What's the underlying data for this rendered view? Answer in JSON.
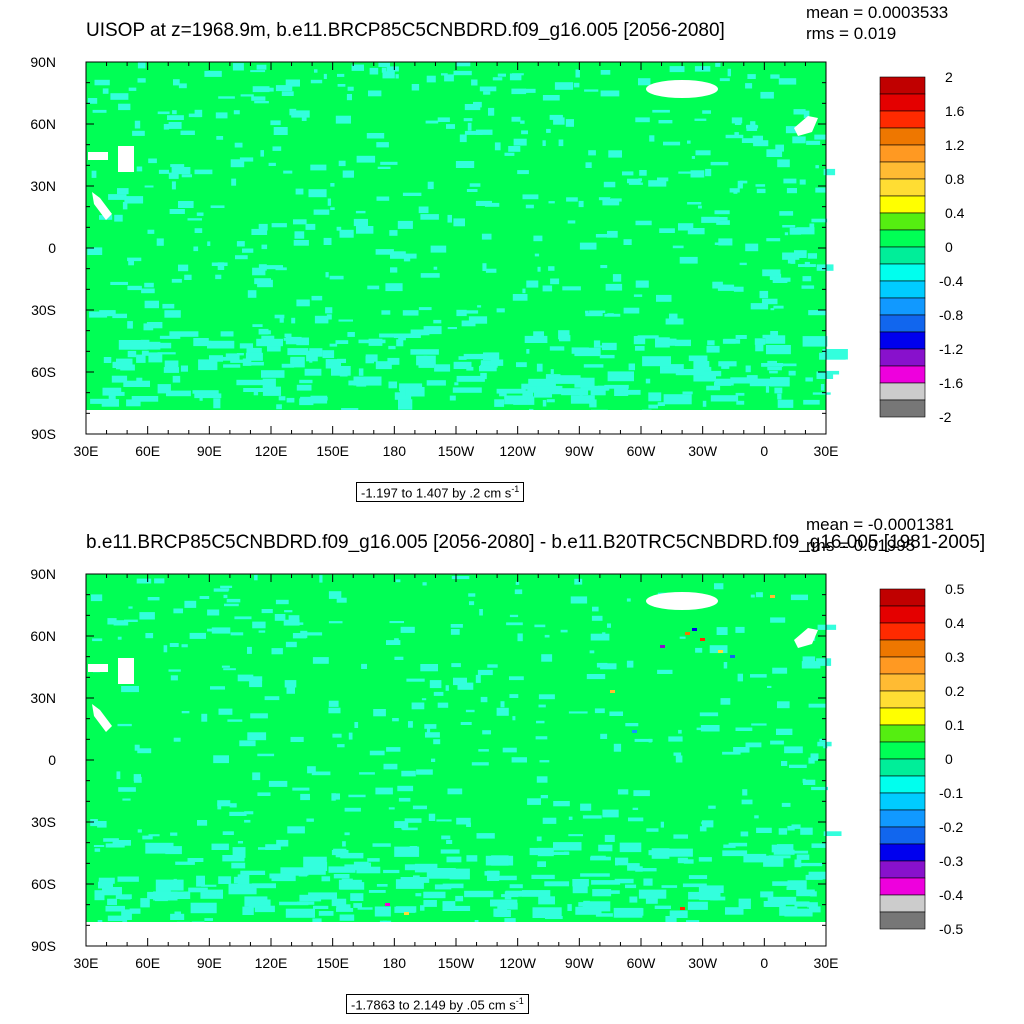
{
  "chart_data": [
    {
      "type": "heatmap",
      "title": "UISOP at z=1968.9m, b.e11.BRCP85C5CNBDRD.f09_g16.005 [2056-2080]",
      "mean_label": "mean = 0.0003533",
      "rms_label": "rms = 0.019",
      "x_ticks": [
        "30E",
        "60E",
        "90E",
        "120E",
        "150E",
        "180",
        "150W",
        "120W",
        "90W",
        "60W",
        "30W",
        "0",
        "30E"
      ],
      "y_ticks": [
        "90N",
        "60N",
        "30N",
        "0",
        "30S",
        "60S",
        "90S"
      ],
      "colorbar_labels": [
        "2",
        "1.6",
        "1.2",
        "0.8",
        "0.4",
        "0",
        "-0.4",
        "-0.8",
        "-1.2",
        "-1.6",
        "-2"
      ],
      "colorbar_range": [
        -2,
        2
      ],
      "range_text": "-1.197 to 1.407 by .2 cm s",
      "range_unit_exp": "-1",
      "dominant_color": "#00ff55",
      "secondary_color": "#33ffdd"
    },
    {
      "type": "heatmap",
      "title": "b.e11.BRCP85C5CNBDRD.f09_g16.005 [2056-2080] - b.e11.B20TRC5CNBDRD.f09_g16.005 [1981-2005]",
      "mean_label": "mean = -0.0001381",
      "rms_label": "rms = 0.01995",
      "x_ticks": [
        "30E",
        "60E",
        "90E",
        "120E",
        "150E",
        "180",
        "150W",
        "120W",
        "90W",
        "60W",
        "30W",
        "0",
        "30E"
      ],
      "y_ticks": [
        "90N",
        "60N",
        "30N",
        "0",
        "30S",
        "60S",
        "90S"
      ],
      "colorbar_labels": [
        "0.5",
        "0.4",
        "0.3",
        "0.2",
        "0.1",
        "0",
        "-0.1",
        "-0.2",
        "-0.3",
        "-0.4",
        "-0.5"
      ],
      "colorbar_range": [
        -0.5,
        0.5
      ],
      "range_text": "-1.7863 to 2.149 by .05 cm s",
      "range_unit_exp": "-1",
      "dominant_color": "#00ff55",
      "secondary_color": "#33ffdd"
    }
  ],
  "colorbar_colors": [
    "#c00000",
    "#e40000",
    "#ff2a00",
    "#ee7700",
    "#ff9922",
    "#ffbb33",
    "#ffdd33",
    "#ffff00",
    "#55ee11",
    "#00ff55",
    "#00ee99",
    "#00ffee",
    "#00ccff",
    "#1199ff",
    "#1166ee",
    "#0000ee",
    "#8811cc",
    "#ee00dd",
    "#cccccc",
    "#777777"
  ]
}
